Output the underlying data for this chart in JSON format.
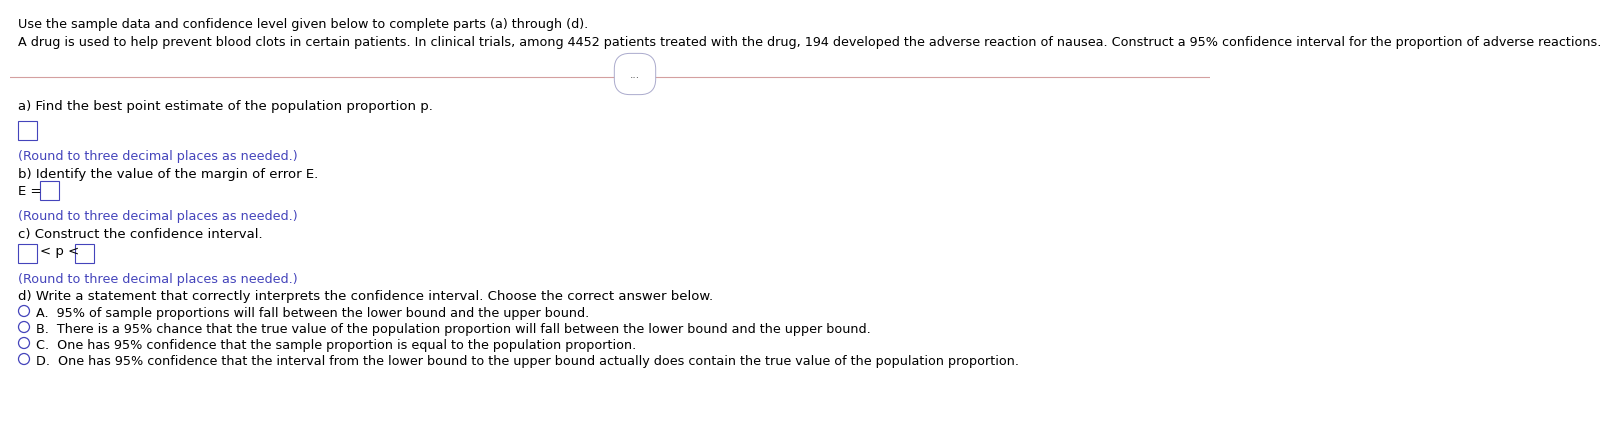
{
  "line1": "Use the sample data and confidence level given below to complete parts (a) through (d).",
  "line2": "A drug is used to help prevent blood clots in certain patients. In clinical trials, among 4452 patients treated with the drug, 194 developed the adverse reaction of nausea. Construct a 95% confidence interval for the proportion of adverse reactions.",
  "section_a_label": "a) Find the best point estimate of the population proportion p.",
  "section_a_hint": "(Round to three decimal places as needed.)",
  "section_b_label": "b) Identify the value of the margin of error E.",
  "section_b_prefix": "E =",
  "section_b_hint": "(Round to three decimal places as needed.)",
  "section_c_label": "c) Construct the confidence interval.",
  "section_c_middle": "< p <",
  "section_c_hint": "(Round to three decimal places as needed.)",
  "section_d_label": "d) Write a statement that correctly interprets the confidence interval. Choose the correct answer below.",
  "option_A": "A.  95% of sample proportions will fall between the lower bound and the upper bound.",
  "option_B": "B.  There is a 95% chance that the true value of the population proportion will fall between the lower bound and the upper bound.",
  "option_C": "C.  One has 95% confidence that the sample proportion is equal to the population proportion.",
  "option_D": "D.  One has 95% confidence that the interval from the lower bound to the upper bound actually does contain the true value of the population proportion.",
  "text_color": "#000000",
  "blue_color": "#4444bb",
  "hint_color": "#4444bb",
  "bg_color": "#ffffff",
  "separator_color": "#d4a0a0",
  "dots_label": "..."
}
